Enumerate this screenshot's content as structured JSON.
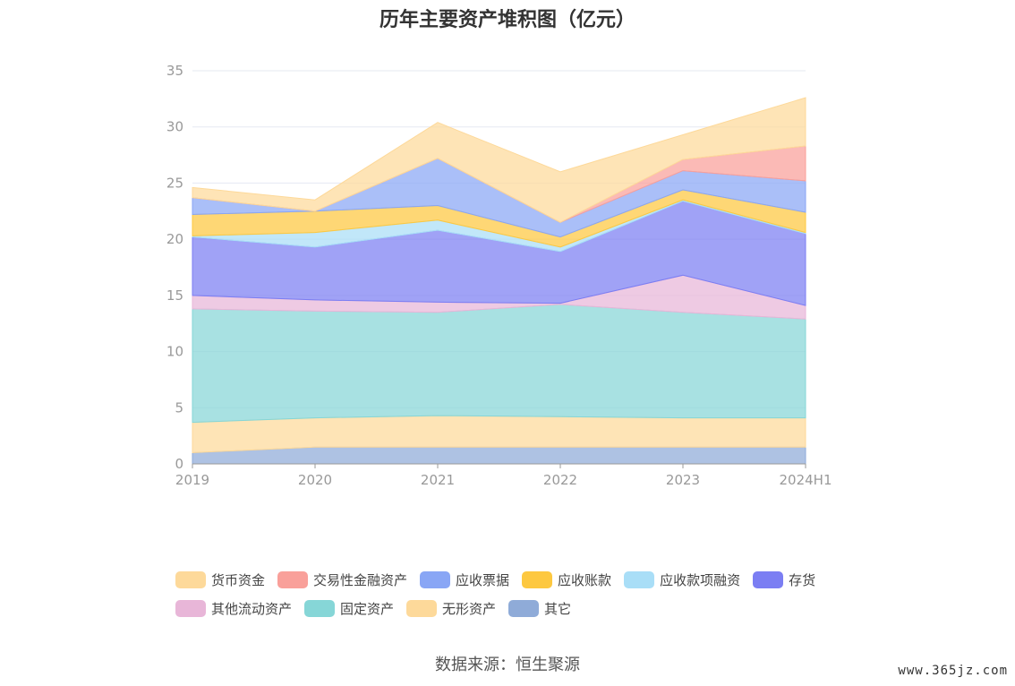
{
  "title": "历年主要资产堆积图（亿元）",
  "source": "数据来源：恒生聚源",
  "watermark": "www.365jz.com",
  "chart_data": {
    "type": "area",
    "stacked": true,
    "title": "历年主要资产堆积图（亿元）",
    "categories": [
      "2019",
      "2020",
      "2021",
      "2022",
      "2023",
      "2024H1"
    ],
    "ylim": [
      0,
      35
    ],
    "yticks": [
      0,
      5,
      10,
      15,
      20,
      25,
      30,
      35
    ],
    "grid": true,
    "legend_position": "bottom",
    "series": [
      {
        "name": "其它",
        "color": "#8fabd8",
        "values": [
          1.0,
          1.5,
          1.5,
          1.5,
          1.5,
          1.5
        ]
      },
      {
        "name": "无形资产",
        "color": "#fdd99a",
        "values": [
          2.7,
          2.6,
          2.8,
          2.7,
          2.6,
          2.6
        ]
      },
      {
        "name": "固定资产",
        "color": "#86d6d7",
        "values": [
          10.1,
          9.5,
          9.2,
          10.0,
          9.4,
          8.8
        ]
      },
      {
        "name": "其他流动资产",
        "color": "#e8b6d8",
        "values": [
          1.2,
          1.0,
          0.9,
          0.1,
          3.3,
          1.2
        ]
      },
      {
        "name": "存货",
        "color": "#7b7ef3",
        "values": [
          5.2,
          4.7,
          6.4,
          4.6,
          6.6,
          6.4
        ]
      },
      {
        "name": "应收款项融资",
        "color": "#a9def7",
        "values": [
          0.1,
          1.3,
          0.9,
          0.4,
          0.1,
          0.1
        ]
      },
      {
        "name": "应收账款",
        "color": "#fdc840",
        "values": [
          1.9,
          1.9,
          1.3,
          0.9,
          0.9,
          1.8
        ]
      },
      {
        "name": "应收票据",
        "color": "#89a6f5",
        "values": [
          1.5,
          0.0,
          4.2,
          1.3,
          1.7,
          2.8
        ]
      },
      {
        "name": "交易性金融资产",
        "color": "#f9a09a",
        "values": [
          0.0,
          0.0,
          0.0,
          0.0,
          1.0,
          3.1
        ]
      },
      {
        "name": "货币资金",
        "color": "#fdd99a",
        "values": [
          0.9,
          1.0,
          3.2,
          4.5,
          2.2,
          4.3
        ]
      }
    ],
    "legend": [
      "货币资金",
      "交易性金融资产",
      "应收票据",
      "应收账款",
      "应收款项融资",
      "存货",
      "其他流动资产",
      "固定资产",
      "无形资产",
      "其它"
    ]
  }
}
